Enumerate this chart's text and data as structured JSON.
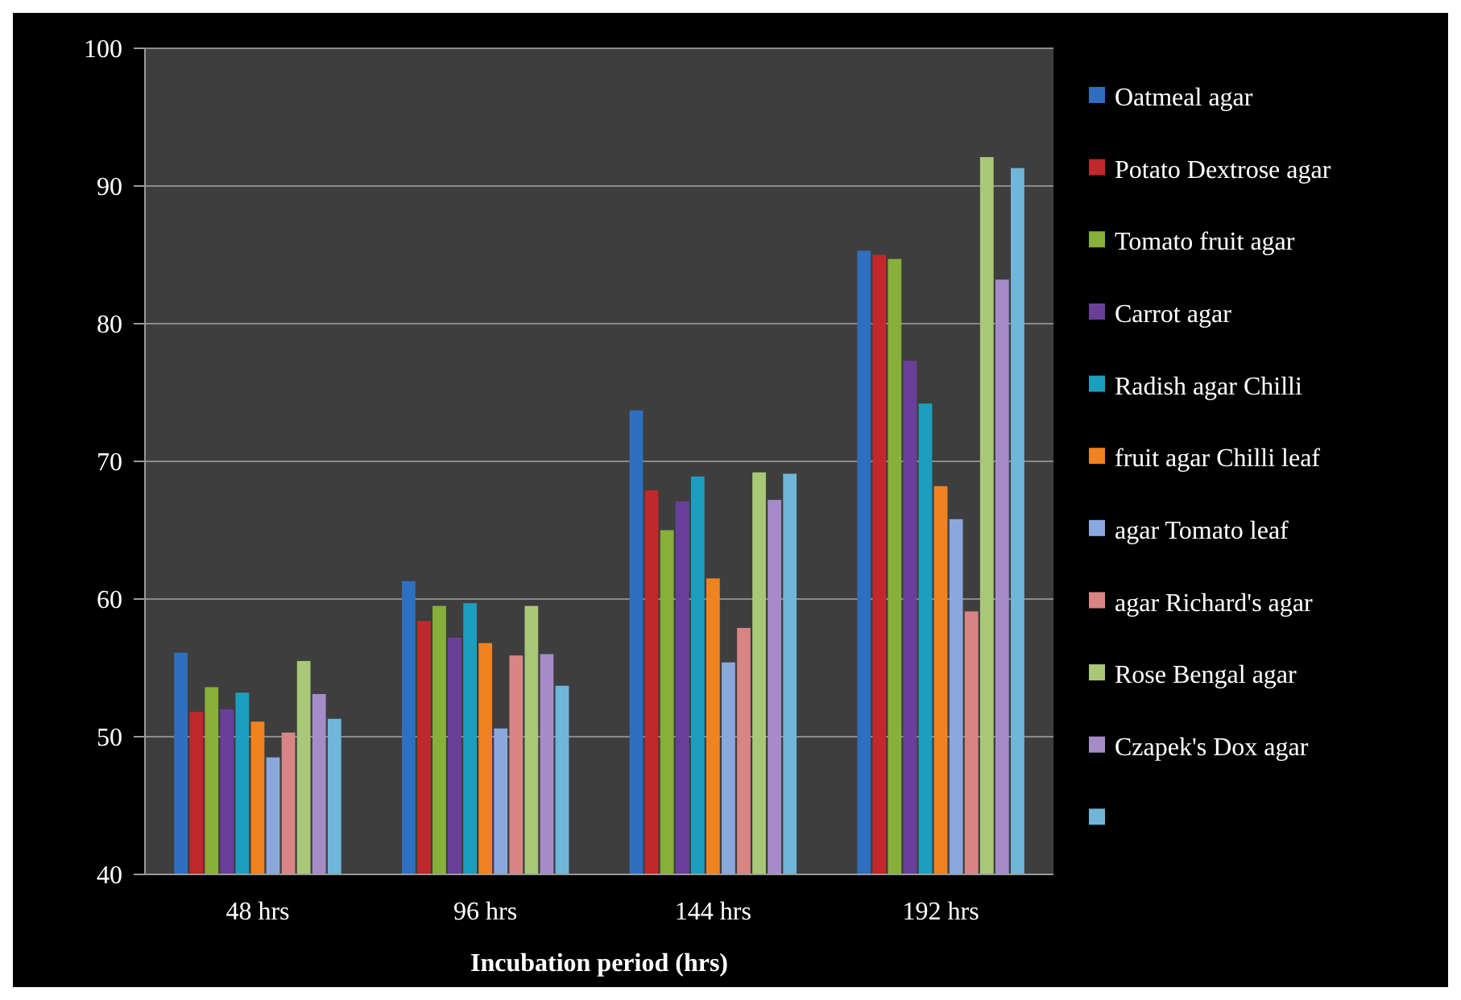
{
  "chart_data": {
    "type": "bar",
    "xlabel": "Incubation period (hrs)",
    "categories": [
      "48 hrs",
      "96 hrs",
      "144 hrs",
      "192 hrs"
    ],
    "ylim": [
      40,
      100
    ],
    "yticks": [
      40,
      50,
      60,
      70,
      80,
      90,
      100
    ],
    "grid": "y",
    "legend": "right",
    "series": [
      {
        "name": "Oatmeal agar",
        "color": "#2e6fc0",
        "values": [
          56.1,
          61.3,
          73.7,
          85.3
        ]
      },
      {
        "name": "Potato Dextrose agar",
        "color": "#c0282c",
        "values": [
          51.8,
          58.4,
          67.9,
          85.0
        ]
      },
      {
        "name": "Tomato fruit agar",
        "color": "#86b03a",
        "values": [
          53.6,
          59.5,
          65.0,
          84.7
        ]
      },
      {
        "name": "Carrot agar",
        "color": "#6a3f9a",
        "values": [
          52.0,
          57.2,
          67.1,
          77.3
        ]
      },
      {
        "name": "Radish agar Chilli",
        "color": "#1c9fbf",
        "values": [
          53.2,
          59.7,
          68.9,
          74.2
        ]
      },
      {
        "name": "fruit agar Chilli leaf",
        "color": "#f08220",
        "values": [
          51.1,
          56.8,
          61.5,
          68.2
        ]
      },
      {
        "name": "agar Tomato leaf",
        "color": "#8aa8dc",
        "values": [
          48.5,
          50.6,
          55.4,
          65.8
        ]
      },
      {
        "name": "agar Richard's agar",
        "color": "#d98585",
        "values": [
          50.3,
          55.9,
          57.9,
          59.1
        ]
      },
      {
        "name": "Rose Bengal agar",
        "color": "#a8c878",
        "values": [
          55.5,
          59.5,
          69.2,
          92.1
        ]
      },
      {
        "name": "Czapek's Dox agar",
        "color": "#a58cc8",
        "values": [
          53.1,
          56.0,
          67.2,
          83.2
        ]
      },
      {
        "color": "#6fb6d8",
        "values": [
          51.3,
          53.7,
          69.1,
          91.3
        ]
      }
    ]
  }
}
